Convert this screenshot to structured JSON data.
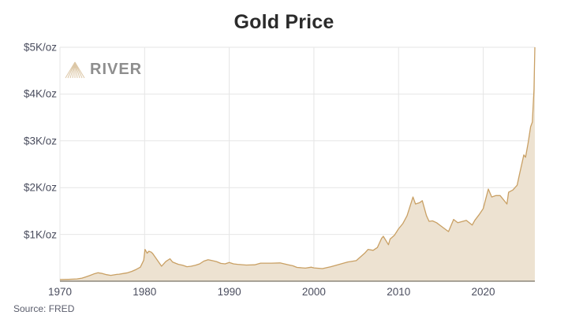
{
  "title": "Gold Price",
  "source": "Source: FRED",
  "logo": {
    "text": "RIVER",
    "icon": "river-mountain-icon"
  },
  "colors": {
    "line": "#c9a064",
    "fill": "#ede2d1",
    "grid": "#e6e6e6",
    "axis": "#7a7366",
    "text": "#4a4d5e",
    "title": "#2b2b2b"
  },
  "chart_data": {
    "type": "area",
    "title": "Gold Price",
    "xlabel": "",
    "ylabel": "",
    "ylim": [
      0,
      5000
    ],
    "xlim": [
      1970,
      2026.1
    ],
    "grid": true,
    "legend": "none",
    "y_ticks": [
      {
        "value": 1000,
        "label": "$1K/oz"
      },
      {
        "value": 2000,
        "label": "$2K/oz"
      },
      {
        "value": 3000,
        "label": "$3K/oz"
      },
      {
        "value": 4000,
        "label": "$4K/oz"
      },
      {
        "value": 5000,
        "label": "$5K/oz"
      }
    ],
    "x_ticks": [
      {
        "value": 1970,
        "label": "1970"
      },
      {
        "value": 1980,
        "label": "1980"
      },
      {
        "value": 1990,
        "label": "1990"
      },
      {
        "value": 2000,
        "label": "2000"
      },
      {
        "value": 2010,
        "label": "2010"
      },
      {
        "value": 2020,
        "label": "2020"
      }
    ],
    "series": [
      {
        "name": "Gold Price (USD/oz)",
        "x": [
          1970,
          1971,
          1972,
          1972.6,
          1973,
          1973.5,
          1974,
          1974.5,
          1975,
          1975.5,
          1976,
          1976.7,
          1977,
          1977.5,
          1978,
          1978.5,
          1979,
          1979.5,
          1979.9,
          1980.05,
          1980.3,
          1980.5,
          1980.8,
          1981,
          1981.5,
          1982,
          1982.5,
          1983,
          1983.3,
          1983.7,
          1984,
          1984.5,
          1985,
          1985.5,
          1986,
          1986.5,
          1987,
          1987.5,
          1988,
          1988.5,
          1989,
          1989.5,
          1990,
          1990.5,
          1991,
          1992,
          1993,
          1993.7,
          1994,
          1995,
          1996,
          1997,
          1997.5,
          1998,
          1999,
          1999.7,
          2000,
          2001,
          2002,
          2003,
          2004,
          2005,
          2006,
          2006.4,
          2007,
          2007.5,
          2008,
          2008.2,
          2008.8,
          2009,
          2009.5,
          2010,
          2010.5,
          2011,
          2011.7,
          2012,
          2012.5,
          2012.8,
          2013.3,
          2013.6,
          2014,
          2014.5,
          2015,
          2015.9,
          2016.5,
          2017,
          2018,
          2018.7,
          2019,
          2019.5,
          2020,
          2020.6,
          2021,
          2021.5,
          2022,
          2022.8,
          2023,
          2023.5,
          2024,
          2024.3,
          2024.8,
          2025,
          2025.3,
          2025.6,
          2025.8,
          2026,
          2026.1
        ],
        "values": [
          35,
          40,
          48,
          65,
          90,
          120,
          155,
          180,
          165,
          140,
          125,
          145,
          150,
          165,
          180,
          210,
          250,
          300,
          450,
          680,
          600,
          640,
          620,
          580,
          450,
          320,
          420,
          480,
          410,
          380,
          360,
          340,
          310,
          320,
          340,
          370,
          430,
          460,
          440,
          420,
          380,
          370,
          400,
          370,
          360,
          345,
          350,
          385,
          385,
          385,
          390,
          350,
          330,
          295,
          280,
          300,
          285,
          270,
          310,
          360,
          410,
          440,
          600,
          680,
          660,
          720,
          920,
          960,
          780,
          900,
          980,
          1120,
          1230,
          1400,
          1800,
          1650,
          1680,
          1720,
          1400,
          1280,
          1290,
          1250,
          1180,
          1060,
          1320,
          1250,
          1300,
          1200,
          1300,
          1420,
          1550,
          1970,
          1800,
          1830,
          1830,
          1650,
          1900,
          1950,
          2050,
          2300,
          2700,
          2650,
          2950,
          3300,
          3400,
          4100,
          5000
        ]
      }
    ]
  }
}
